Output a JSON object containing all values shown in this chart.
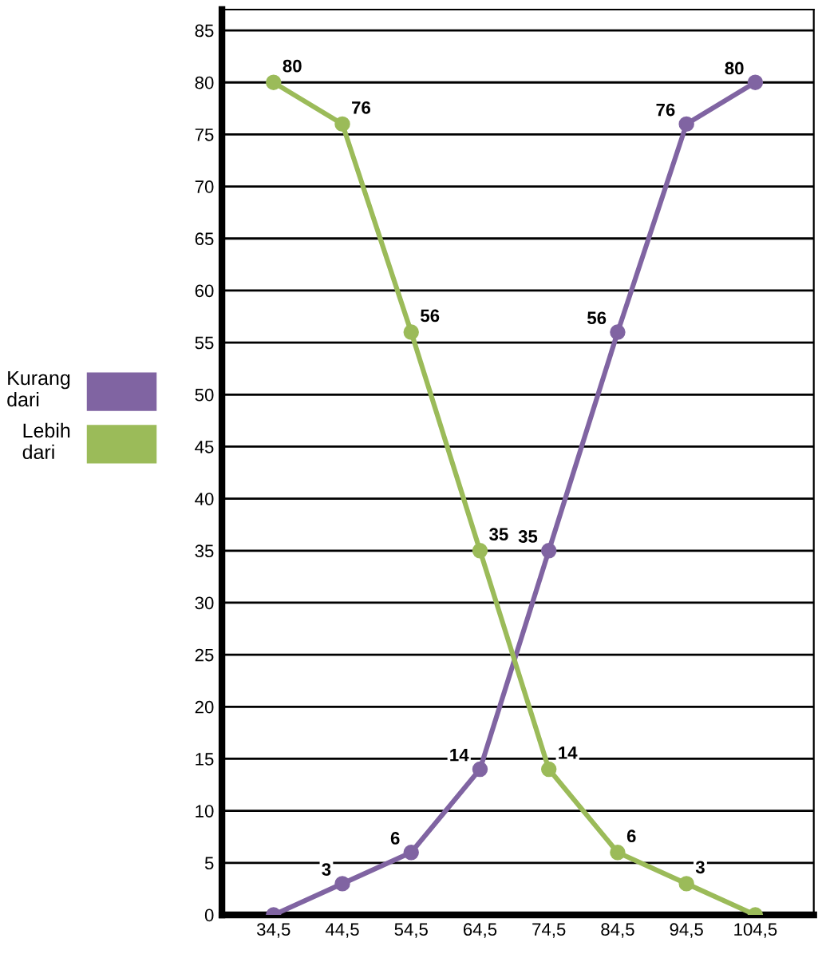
{
  "chart_data": {
    "type": "line",
    "x": [
      34.5,
      44.5,
      54.5,
      64.5,
      74.5,
      84.5,
      94.5,
      104.5
    ],
    "series": [
      {
        "name": "Kurang dari",
        "color": "#8064a2",
        "values": [
          0,
          3,
          6,
          14,
          35,
          56,
          76,
          80
        ],
        "value_labels": [
          null,
          "3",
          "6",
          "14",
          "35",
          "56",
          "76",
          "80"
        ]
      },
      {
        "name": "Lebih dari",
        "color": "#9bbb59",
        "values": [
          80,
          76,
          56,
          35,
          14,
          6,
          3,
          0
        ],
        "value_labels": [
          "80",
          "76",
          "56",
          "35",
          "14",
          "6",
          "3",
          null
        ]
      }
    ],
    "xlim": [
      27,
      113
    ],
    "xticks": [
      {
        "value": 34.5,
        "label": "34,5"
      },
      {
        "value": 44.5,
        "label": "44,5"
      },
      {
        "value": 54.5,
        "label": "54,5"
      },
      {
        "value": 64.5,
        "label": "64,5"
      },
      {
        "value": 74.5,
        "label": "74,5"
      },
      {
        "value": 84.5,
        "label": "84,5"
      },
      {
        "value": 94.5,
        "label": "94,5"
      },
      {
        "value": 104.5,
        "label": "104,5"
      }
    ],
    "ylim": [
      0,
      87
    ],
    "yticks": [
      0,
      5,
      10,
      15,
      20,
      25,
      30,
      35,
      40,
      45,
      50,
      55,
      60,
      65,
      70,
      75,
      80,
      85
    ],
    "grid": "y",
    "legend": "left",
    "marker": "circle",
    "line_style": "solid"
  }
}
